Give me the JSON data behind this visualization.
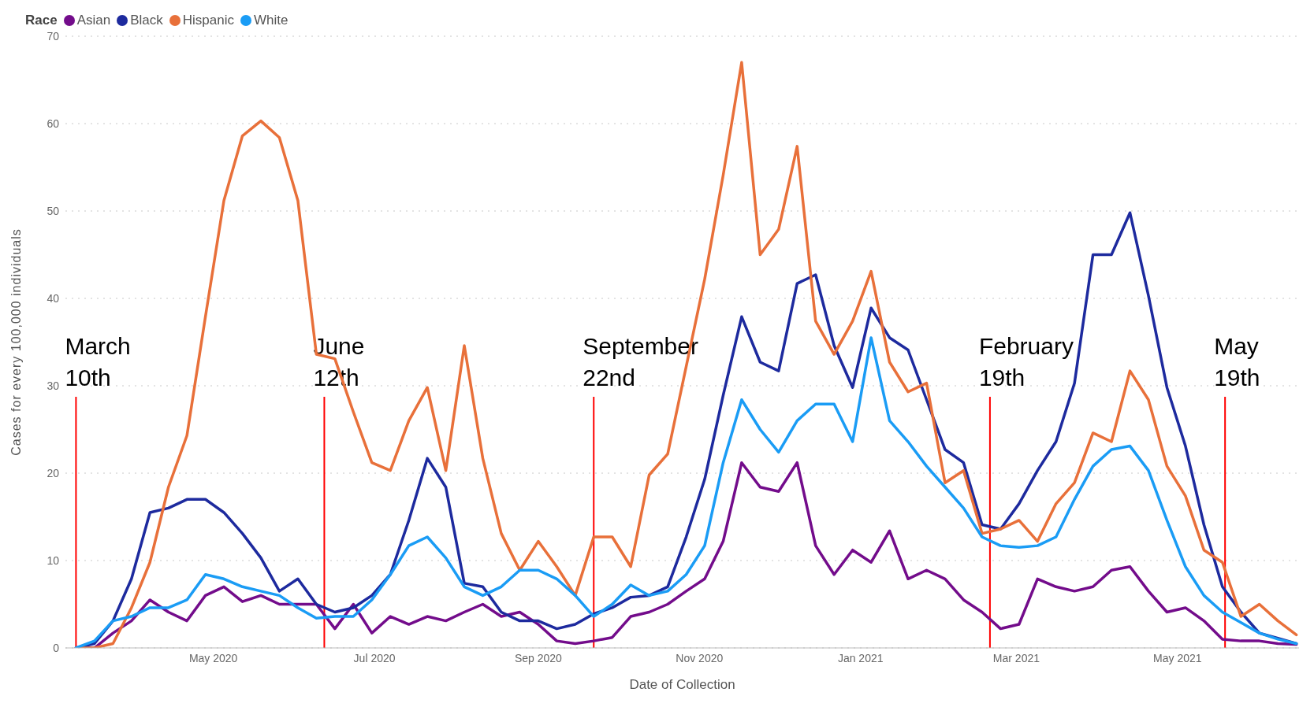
{
  "chart_data": {
    "type": "line",
    "xlabel": "Date of Collection",
    "ylabel": "Cases for every 100,000 individuals",
    "legend_title": "Race",
    "legend": "top left",
    "grid": "y",
    "marker": "none",
    "line_style": "solid",
    "x": [
      "2020-03-10",
      "2020-03-17",
      "2020-03-24",
      "2020-03-31",
      "2020-04-07",
      "2020-04-14",
      "2020-04-21",
      "2020-04-28",
      "2020-05-05",
      "2020-05-12",
      "2020-05-19",
      "2020-05-26",
      "2020-06-02",
      "2020-06-09",
      "2020-06-16",
      "2020-06-23",
      "2020-06-30",
      "2020-07-07",
      "2020-07-14",
      "2020-07-21",
      "2020-07-28",
      "2020-08-04",
      "2020-08-11",
      "2020-08-18",
      "2020-08-25",
      "2020-09-01",
      "2020-09-08",
      "2020-09-15",
      "2020-09-22",
      "2020-09-29",
      "2020-10-06",
      "2020-10-13",
      "2020-10-20",
      "2020-10-27",
      "2020-11-03",
      "2020-11-10",
      "2020-11-17",
      "2020-11-24",
      "2020-12-01",
      "2020-12-08",
      "2020-12-15",
      "2020-12-22",
      "2020-12-29",
      "2021-01-05",
      "2021-01-12",
      "2021-01-19",
      "2021-01-26",
      "2021-02-02",
      "2021-02-09",
      "2021-02-16",
      "2021-02-23",
      "2021-03-02",
      "2021-03-09",
      "2021-03-16",
      "2021-03-23",
      "2021-03-30",
      "2021-04-06",
      "2021-04-13",
      "2021-04-20",
      "2021-04-27",
      "2021-05-04",
      "2021-05-11",
      "2021-05-18",
      "2021-05-25",
      "2021-06-01",
      "2021-06-08",
      "2021-06-15"
    ],
    "xlim": [
      "2020-03-06",
      "2021-06-16"
    ],
    "xticks": [
      {
        "value": "2020-05-01",
        "label": "May 2020"
      },
      {
        "value": "2020-07-01",
        "label": "Jul 2020"
      },
      {
        "value": "2020-09-01",
        "label": "Sep 2020"
      },
      {
        "value": "2020-11-01",
        "label": "Nov 2020"
      },
      {
        "value": "2021-01-01",
        "label": "Jan 2021"
      },
      {
        "value": "2021-03-01",
        "label": "Mar 2021"
      },
      {
        "value": "2021-05-01",
        "label": "May 2021"
      }
    ],
    "ylim": [
      0,
      70
    ],
    "yticks": [
      0,
      10,
      20,
      30,
      40,
      50,
      60,
      70
    ],
    "series": [
      {
        "name": "Asian",
        "color": "#730c8b",
        "values": [
          0,
          0,
          1.7,
          3.1,
          5.5,
          4.1,
          3.1,
          6,
          7,
          5.3,
          6,
          5,
          5,
          5,
          2.2,
          5,
          1.7,
          3.6,
          2.7,
          3.6,
          3.1,
          4.1,
          5,
          3.6,
          4.1,
          2.7,
          0.8,
          0.5,
          0.8,
          1.2,
          3.6,
          4.1,
          5,
          6.5,
          7.9,
          12.2,
          21.2,
          18.4,
          17.9,
          21.2,
          11.7,
          8.4,
          11.2,
          9.8,
          13.4,
          7.9,
          8.9,
          7.9,
          5.5,
          4.1,
          2.2,
          2.7,
          7.9,
          7,
          6.5,
          7,
          8.9,
          9.3,
          6.5,
          4.1,
          4.6,
          3.1,
          1,
          0.8,
          0.8,
          0.5,
          0.4
        ]
      },
      {
        "name": "Black",
        "color": "#1d2a9e",
        "values": [
          0,
          0.5,
          3.1,
          7.9,
          15.5,
          16,
          17,
          17,
          15.5,
          13.1,
          10.3,
          6.5,
          7.9,
          5,
          4.1,
          4.6,
          6,
          8.4,
          14.6,
          21.7,
          18.4,
          7.4,
          7,
          4.1,
          3.1,
          3.1,
          2.2,
          2.7,
          3.9,
          4.6,
          5.8,
          6,
          7,
          12.7,
          19.3,
          28.9,
          37.9,
          32.7,
          31.7,
          41.7,
          42.7,
          34.6,
          29.8,
          38.9,
          35.5,
          34.1,
          28.4,
          22.7,
          21.2,
          14.1,
          13.6,
          16.5,
          20.3,
          23.6,
          30.3,
          45,
          45,
          49.8,
          40.3,
          29.8,
          23.1,
          14.1,
          7,
          4.1,
          1.7,
          1.1,
          0.5
        ]
      },
      {
        "name": "Hispanic",
        "color": "#e8703a",
        "values": [
          0,
          0,
          0.5,
          4.6,
          9.8,
          18.4,
          24.3,
          37.9,
          51.2,
          58.6,
          60.3,
          58.4,
          51.2,
          33.6,
          33.1,
          27,
          21.2,
          20.3,
          26,
          29.8,
          20.3,
          34.6,
          21.7,
          13.1,
          8.9,
          12.2,
          9.3,
          6,
          12.7,
          12.7,
          9.3,
          19.8,
          22.2,
          32.2,
          42.2,
          54.1,
          67,
          45,
          47.9,
          57.4,
          37.4,
          33.6,
          37.4,
          43.1,
          32.7,
          29.3,
          30.3,
          18.9,
          20.3,
          13.1,
          13.6,
          14.6,
          12.2,
          16.5,
          18.9,
          24.6,
          23.6,
          31.7,
          28.4,
          20.8,
          17.4,
          11.2,
          9.8,
          3.6,
          5,
          3.1,
          1.5
        ]
      },
      {
        "name": "White",
        "color": "#1a9cf5",
        "values": [
          0,
          0.8,
          3.1,
          3.6,
          4.6,
          4.6,
          5.5,
          8.4,
          7.9,
          7,
          6.5,
          6,
          4.6,
          3.4,
          3.6,
          3.6,
          5.5,
          8.4,
          11.7,
          12.7,
          10.3,
          7,
          6,
          7,
          8.9,
          8.9,
          7.9,
          6,
          3.6,
          5,
          7.2,
          6,
          6.5,
          8.4,
          11.7,
          21.2,
          28.4,
          25,
          22.4,
          26,
          27.9,
          27.9,
          23.6,
          35.5,
          26,
          23.6,
          20.8,
          18.4,
          16,
          12.7,
          11.7,
          11.5,
          11.7,
          12.7,
          17,
          20.8,
          22.7,
          23.1,
          20.3,
          14.6,
          9.3,
          6,
          4.1,
          2.9,
          1.7,
          1,
          0.5
        ]
      }
    ],
    "ref_lines": [
      {
        "axis": "x",
        "value": "2020-03-10",
        "label": "March 10th",
        "color": "#ff0000"
      },
      {
        "axis": "x",
        "value": "2020-06-12",
        "label": "June 12th",
        "color": "#ff0000"
      },
      {
        "axis": "x",
        "value": "2020-09-22",
        "label": "September 22nd",
        "color": "#ff0000"
      },
      {
        "axis": "x",
        "value": "2021-02-19",
        "label": "February 19th",
        "color": "#ff0000"
      },
      {
        "axis": "x",
        "value": "2021-05-19",
        "label": "May 19th",
        "color": "#ff0000"
      }
    ]
  }
}
